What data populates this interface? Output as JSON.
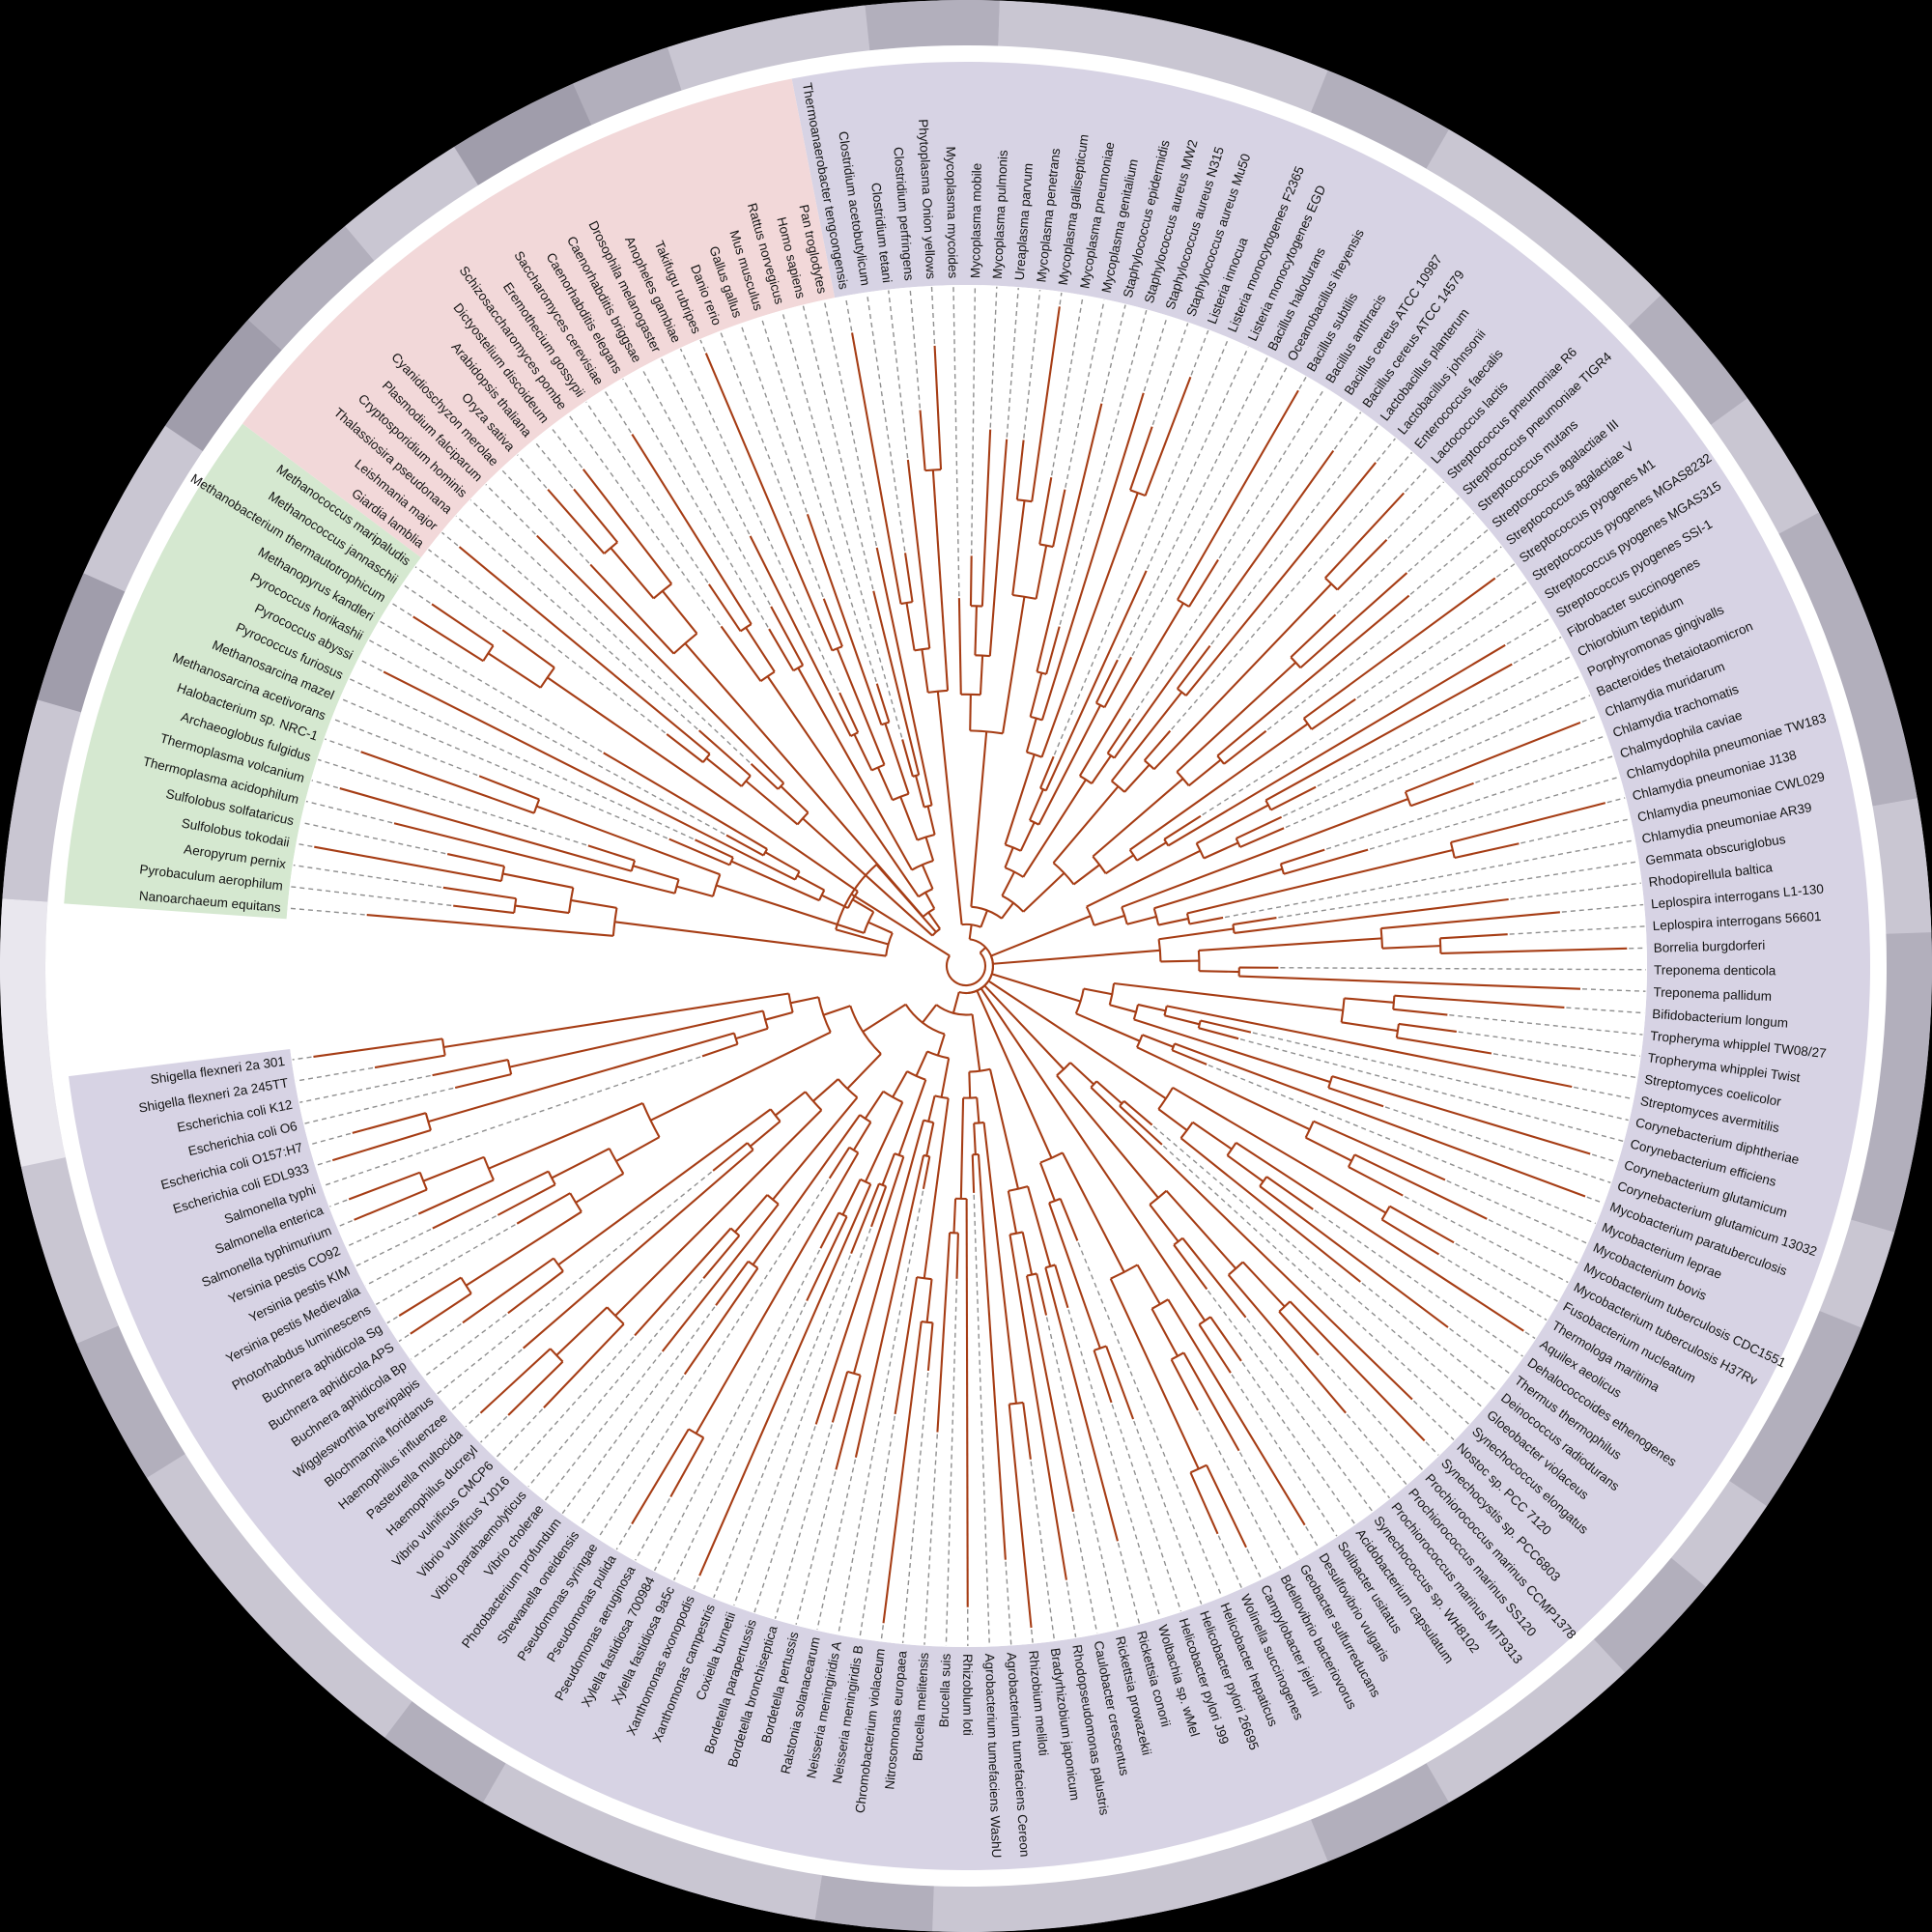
{
  "figure": {
    "description": "Circular phylogenetic tree of life with 191 species grouped into Bacteria, Archaea and Eukaryota sectors",
    "background": "#000000"
  },
  "colors": {
    "branch": "#a63d15",
    "leader": "#8f8f8f",
    "label": "#141414",
    "inner_disc": "#ffffff",
    "white_ring": "#ffffff",
    "ring_shades": {
      "L": "#c9c6d2",
      "M": "#b2afbc",
      "D": "#a09dab",
      "W": "#e9e7ee"
    }
  },
  "outer_ring_segments": [
    [
      -108,
      -96,
      "L"
    ],
    [
      -96,
      -88,
      "M"
    ],
    [
      -88,
      -68,
      "L"
    ],
    [
      -68,
      -60,
      "M"
    ],
    [
      -60,
      -44,
      "L"
    ],
    [
      -44,
      -36,
      "M"
    ],
    [
      -36,
      -28,
      "L"
    ],
    [
      -28,
      -10,
      "M"
    ],
    [
      -10,
      -2,
      "L"
    ],
    [
      -2,
      16,
      "M"
    ],
    [
      16,
      22,
      "L"
    ],
    [
      22,
      34,
      "M"
    ],
    [
      34,
      40,
      "L"
    ],
    [
      40,
      47,
      "M"
    ],
    [
      47,
      60,
      "L"
    ],
    [
      60,
      68,
      "M"
    ],
    [
      68,
      92,
      "L"
    ],
    [
      92,
      99,
      "M"
    ],
    [
      99,
      120,
      "L"
    ],
    [
      120,
      127,
      "M"
    ],
    [
      127,
      148,
      "L"
    ],
    [
      148,
      157,
      "M"
    ],
    [
      157,
      168,
      "L"
    ],
    [
      168,
      184,
      "W"
    ],
    [
      184,
      196,
      "L"
    ],
    [
      196,
      204,
      "D"
    ],
    [
      204,
      214,
      "L"
    ],
    [
      214,
      222,
      "D"
    ],
    [
      222,
      230,
      "M"
    ],
    [
      230,
      238,
      "L"
    ],
    [
      238,
      246,
      "D"
    ],
    [
      246,
      252,
      "M"
    ]
  ],
  "tree": {
    "domains": [
      {
        "name": "Bacteria",
        "sector_color": "#d7d3e4",
        "leaves": [
          "Thermoanaerobacter tengcongensis",
          "Clostridium acetobutylicum",
          "Clostridium tetani",
          "Clostridium perfringens",
          "Phytoplasma Onion yellows",
          "Mycoplasma mycoides",
          "Mycoplasma mobile",
          "Mycoplasma pulmonis",
          "Ureaplasma parvum",
          "Mycoplasma penetrans",
          "Mycoplasma gallisepticum",
          "Mycoplasma pneumoniae",
          "Mycoplasma genitalium",
          "Staphylococcus epidermidis",
          "Staphylococcus aureus MW2",
          "Staphylococcus aureus N315",
          "Staphylococcus aureus Mu50",
          "Listeria innocua",
          "Listeria monocytogenes F2365",
          "Listeria monocytogenes EGD",
          "Bacillus halodurans",
          "Oceanobacillus iheyensis",
          "Bacillus subtilis",
          "Bacillus anthracis",
          "Bacillus cereus ATCC 10987",
          "Bacillus cereus ATCC 14579",
          "Lactobacillus planterum",
          "Lactobacillus johnsonii",
          "Enterococcus faecalis",
          "Lactococcus lactis",
          "Streptococcus pneumoniae R6",
          "Streptococcus pneumoniae TIGR4",
          "Streptococcus mutans",
          "Streptococcus agalactiae III",
          "Streptococcus agalactiae V",
          "Streptococcus pyogenes M1",
          "Streptococcus pyogenes MGAS8232",
          "Streptococcus pyogenes MGAS315",
          "Streptococcus pyogenes SSI-1",
          "Fibrobacter succinogenes",
          "Chiorobium tepidum",
          "Porphyromonas gingivalls",
          "Bacteroides thetaiotaomicron",
          "Chlamydia muridarum",
          "Chlamydia trachomatis",
          "Chalmydophila caviae",
          "Chlamydophila pneumoniae TW183",
          "Chlamydia pneumoniae J138",
          "Chlamydia pneumoniae CWL029",
          "Chlamydia pneumoniae AR39",
          "Gemmata obscuriglobus",
          "Rhodopirellula baltica",
          "Leplospira interrogans L1-130",
          "Leplospira interrogans 56601",
          "Borrelia burgdorferi",
          "Treponema denticola",
          "Treponema pallidum",
          "Bifidobacterium longum",
          "Tropheryma whipplel TW08/27",
          "Tropheryma whipplei Twist",
          "Streptomyces coelicolor",
          "Streptomyces avermitilis",
          "Corynebacterium diphtheriae",
          "Corynebacterium efficiens",
          "Corynebacterium glutamicum",
          "Corynebacterium glutamicum 13032",
          "Mycobacterium paratuberculosis",
          "Mycobacterium leprae",
          "Mycobacterium bovis",
          "Mycobacterium tuberculosis CDC1551",
          "Mycobacterium tuberculosis H37Rv",
          "Fusobacterium nucleatum",
          "Thermologa maritima",
          "Aquilex aeolicus",
          "Dehalococcoides ethenogenes",
          "Thermus thermophilus",
          "Deinococcus radiodurans",
          "Gloeobacter violaceus",
          "Synechococcus elongatus",
          "Nostoc sp. PCC 7120",
          "Synechocystis sp. PCC6803",
          "Prochiorococcus marinus CCMP1378",
          "Prochiorococcus marinus SS120",
          "Prochiorococcus marinus MIT9313",
          "Synechococcus sp. WH8102",
          "Acidobacterium capsulatum",
          "Solibacter usitatus",
          "Desulfovibrio vulgaris",
          "Geobacter sulfurreducans",
          "Bdellovibrio bacteriovorus",
          "Campylobacter jejuni",
          "Wolinella succinogenes",
          "Helicobacter hepaticus",
          "Helicobacter pylori 26695",
          "Helicobacter pylori J99",
          "Wolbachia sp. wMel",
          "Rickettsia conorii",
          "Rickettsia prowazekii",
          "Caulobacter crescentus",
          "Rhodopseudomonas palustris",
          "Bradyrhizobium japonicum",
          "Rhizobium meliloti",
          "Agrobacterium tumefaciens Cereon",
          "Agrobacterium tumefaciens WashU",
          "Rhizoblum loti",
          "Brucella suis",
          "Brucella melitensis",
          "Nitrosomonas europaea",
          "Chromobacterium violaceum",
          "Neisseria meningiridis B",
          "Neisseria meningiridis A",
          "Ralstonia solanacearum",
          "Bordetella pertussis",
          "Bordetella bronchiseptica",
          "Bordetella parapertussis",
          "Coxiella burnetii",
          "Xanthomonas campestris",
          "Xanthomonas axonopodis",
          "Xylella fastidiosa 9a5c",
          "Xylella fastidiosa 700984",
          "Pseudomonas aeruginosa",
          "Pseudomonas pulida",
          "Pseudomonas syringae",
          "Shewanella oneidensis",
          "Photobacterium profundum",
          "Vibrio cholerae",
          "Vibrio parahaemolyticus",
          "Vibrio vulnificus YJ016",
          "Vibrio vulnificus CMCP6",
          "Haemophilus ducreyl",
          "Pasteurella multocida",
          "Haemophilus influenzee",
          "Blochmannia floridanus",
          "Wigglesworthia brevipalpis",
          "Buchnera aphidicola Bp",
          "Buchnera aphidicola APS",
          "Buchnera aphidicola Sg",
          "Photorhabdus luminescens",
          "Yersinia pestis Medievalia",
          "Yersinia pestis KIM",
          "Yersinia pestis CO92",
          "Salmonella typhimurium",
          "Salmonella enterica",
          "Salmonella typhi",
          "Escherichia coli EDL933",
          "Escherichia coli O157:H7",
          "Escherichia coli O6",
          "Escherichia coli K12",
          "Shigella flexneri 2a 245TT",
          "Shigella flexneri 2a 301"
        ],
        "topology": {
          "c": [
            {
              "c": [
                {
                  "r": [
                    0,
                    4
                  ]
                },
                {
                  "c": [
                    {
                      "r": [
                        5,
                        12
                      ]
                    },
                    {
                      "c": [
                        {
                          "r": [
                            13,
                            25
                          ]
                        },
                        {
                          "r": [
                            26,
                            38
                          ]
                        }
                      ]
                    }
                  ]
                }
              ]
            },
            {
              "c": [
                {
                  "c": [
                    {
                      "r": [
                        39,
                        42
                      ]
                    },
                    {
                      "r": [
                        43,
                        49
                      ]
                    }
                  ]
                },
                {
                  "c": [
                    {
                      "c": [
                        {
                          "r": [
                            50,
                            51
                          ]
                        },
                        {
                          "r": [
                            52,
                            56
                          ]
                        }
                      ]
                    },
                    {
                      "c": [
                        {
                          "r": [
                            57,
                            70
                          ]
                        },
                        {
                          "c": [
                            {
                              "r": [
                                71,
                                76
                              ]
                            },
                            {
                              "c": [
                                {
                                  "r": [
                                    77,
                                    84
                                  ]
                                },
                                {
                                  "c": [
                                    {
                                      "r": [
                                        85,
                                        86
                                      ]
                                    },
                                    {
                                      "c": [
                                        {
                                          "r": [
                                            87,
                                            94
                                          ]
                                        },
                                        {
                                          "c": [
                                            {
                                              "r": [
                                                95,
                                                106
                                              ]
                                            },
                                            {
                                              "r": [
                                                107,
                                                149
                                              ]
                                            }
                                          ]
                                        }
                                      ]
                                    }
                                  ]
                                }
                              ]
                            }
                          ]
                        }
                      ]
                    }
                  ]
                }
              ]
            }
          ]
        }
      },
      {
        "name": "Archaea",
        "sector_color": "#d5e8d0",
        "leaves": [
          "Nanoarchaeum equitans",
          "Pyrobaculum aerophilum",
          "Aeropyrum pernix",
          "Sulfolobus tokodaii",
          "Sulfolobus solfataricus",
          "Thermoplasma acidophilum",
          "Thermoplasma volcanium",
          "Archaeoglobus fulgidus",
          "Halobacterium sp. NRC-1",
          "Methanosarcina acetivorans",
          "Methanosarcina mazel",
          "Pyrococcus furiosus",
          "Pyrococcus abyssi",
          "Pyrococcus horikashii",
          "Methanopyrus kandleri",
          "Methanobacterium thermautotrophicum",
          "Methanococcus jannaschii",
          "Methanococcus maripaludis"
        ],
        "topology": {
          "c": [
            {
              "c": [
                {
                  "r": [
                    0,
                    0
                  ]
                },
                {
                  "r": [
                    1,
                    4
                  ]
                }
              ]
            },
            {
              "r": [
                5,
                17
              ]
            }
          ]
        }
      },
      {
        "name": "Eukaryota",
        "sector_color": "#f2d8d9",
        "leaves": [
          "Giardia lamblia",
          "Leishmania major",
          "Thalassiosira pseudonana",
          "Cryptosporidium hominis",
          "Plasmodium falciparum",
          "Cyanidioschyzon merolae",
          "Oryza sativa",
          "Arabidopsis thaliana",
          "Dictyostelium discoideum",
          "Schizosaccharomyces pombe",
          "Eremothecium gossypii",
          "Saccharomyces cerevisiae",
          "Caenorhabditis elegans",
          "Caenorhabditis briggsae",
          "Drosophila melanogaster",
          "Anopheles gambiae",
          "Takifugu rubripes",
          "Danio rerio",
          "Gallus gallus",
          "Mus musculus",
          "Rattus norvegicus",
          "Homo sapiens",
          "Pan troglodytes"
        ],
        "topology": {
          "c": [
            {
              "r": [
                0,
                4
              ]
            },
            {
              "c": [
                {
                  "r": [
                    5,
                    8
                  ]
                },
                {
                  "c": [
                    {
                      "r": [
                        9,
                        11
                      ]
                    },
                    {
                      "c": [
                        {
                          "r": [
                            12,
                            13
                          ]
                        },
                        {
                          "r": [
                            14,
                            22
                          ]
                        }
                      ]
                    }
                  ]
                }
              ]
            }
          ]
        }
      }
    ]
  }
}
